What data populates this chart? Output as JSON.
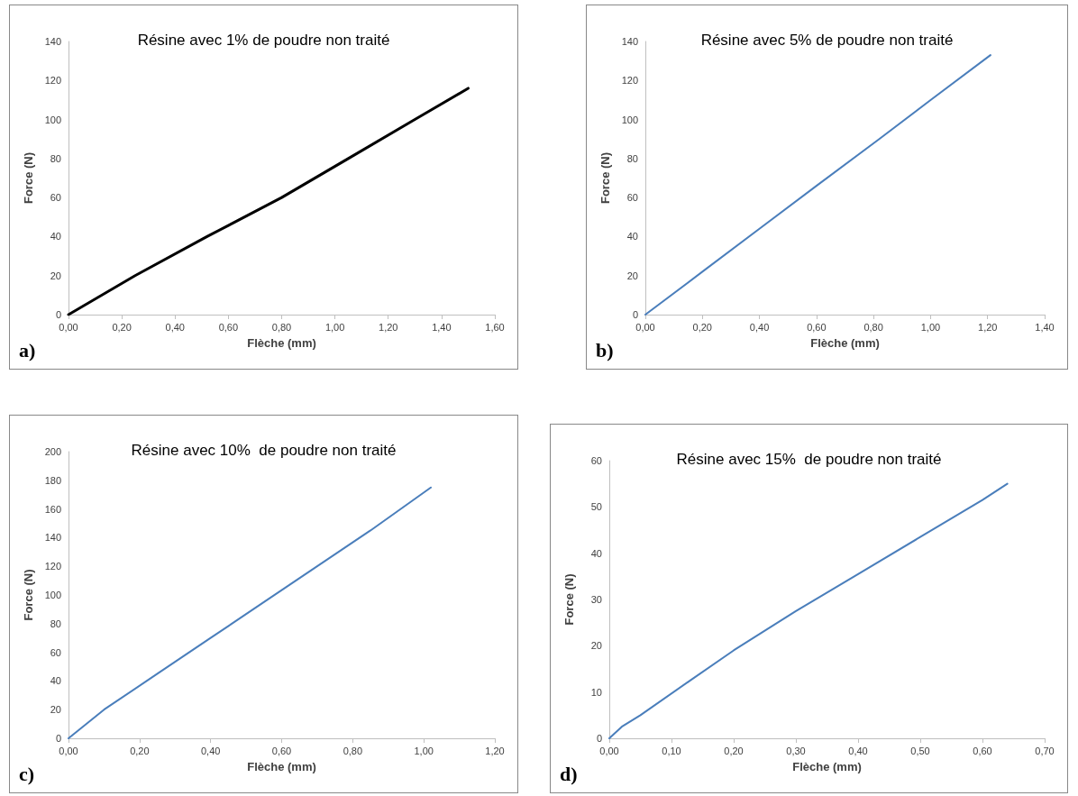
{
  "chart_data": [
    {
      "type": "line",
      "title": "Résine avec 1% de poudre non traité",
      "xlabel": "Flèche (mm)",
      "ylabel": "Force (N)",
      "annotations": [
        "a)"
      ],
      "marker": "none",
      "grid": false,
      "series": [
        {
          "color": "#000000",
          "x": [
            0,
            0.25,
            0.52,
            0.8,
            1.05,
            1.3,
            1.5
          ],
          "values": [
            0,
            20,
            40,
            60,
            80,
            100,
            116
          ]
        }
      ],
      "xlim": [
        0,
        1.6
      ],
      "xticks": [
        {
          "value": 0,
          "label": "0,00"
        },
        {
          "value": 0.2,
          "label": "0,20"
        },
        {
          "value": 0.4,
          "label": "0,40"
        },
        {
          "value": 0.6,
          "label": "0,60"
        },
        {
          "value": 0.8,
          "label": "0,80"
        },
        {
          "value": 1,
          "label": "1,00"
        },
        {
          "value": 1.2,
          "label": "1,20"
        },
        {
          "value": 1.4,
          "label": "1,40"
        },
        {
          "value": 1.6,
          "label": "1,60"
        }
      ],
      "ylim": [
        0,
        140
      ],
      "yticks": [
        0,
        20,
        40,
        60,
        80,
        100,
        120,
        140
      ]
    },
    {
      "type": "line",
      "title": "Résine avec 5% de poudre non traité",
      "xlabel": "Flèche (mm)",
      "ylabel": "Force (N)",
      "annotations": [
        "b)"
      ],
      "marker": "none",
      "grid": false,
      "series": [
        {
          "color": "#4a7ebb",
          "x": [
            0,
            0.2,
            0.4,
            0.6,
            0.82,
            1.0,
            1.21
          ],
          "values": [
            0,
            22,
            44,
            66,
            90,
            110,
            133
          ]
        }
      ],
      "xlim": [
        0,
        1.4
      ],
      "xticks": [
        {
          "value": 0,
          "label": "0,00"
        },
        {
          "value": 0.2,
          "label": "0,20"
        },
        {
          "value": 0.4,
          "label": "0,40"
        },
        {
          "value": 0.6,
          "label": "0,60"
        },
        {
          "value": 0.8,
          "label": "0,80"
        },
        {
          "value": 1,
          "label": "1,00"
        },
        {
          "value": 1.2,
          "label": "1,20"
        },
        {
          "value": 1.4,
          "label": "1,40"
        }
      ],
      "ylim": [
        0,
        140
      ],
      "yticks": [
        0,
        20,
        40,
        60,
        80,
        100,
        120,
        140
      ]
    },
    {
      "type": "line",
      "title": "Résine avec 10%  de poudre non traité",
      "xlabel": "Flèche (mm)",
      "ylabel": "Force (N)",
      "annotations": [
        "c)"
      ],
      "marker": "none",
      "grid": false,
      "series": [
        {
          "color": "#4a7ebb",
          "x": [
            0,
            0.1,
            0.25,
            0.4,
            0.55,
            0.7,
            0.85,
            1.02
          ],
          "values": [
            0,
            20,
            45,
            70,
            95,
            120,
            145,
            175
          ]
        }
      ],
      "xlim": [
        0,
        1.2
      ],
      "xticks": [
        {
          "value": 0,
          "label": "0,00"
        },
        {
          "value": 0.2,
          "label": "0,20"
        },
        {
          "value": 0.4,
          "label": "0,40"
        },
        {
          "value": 0.6,
          "label": "0,60"
        },
        {
          "value": 0.8,
          "label": "0,80"
        },
        {
          "value": 1,
          "label": "1,00"
        },
        {
          "value": 1.2,
          "label": "1,20"
        }
      ],
      "ylim": [
        0,
        200
      ],
      "yticks": [
        0,
        20,
        40,
        60,
        80,
        100,
        120,
        140,
        160,
        180,
        200
      ]
    },
    {
      "type": "line",
      "title": "Résine avec 15%  de poudre non traité",
      "xlabel": "Flèche (mm)",
      "ylabel": "Force (N)",
      "annotations": [
        "d)"
      ],
      "marker": "none",
      "grid": false,
      "series": [
        {
          "color": "#4a7ebb",
          "x": [
            0,
            0.02,
            0.05,
            0.13,
            0.2,
            0.3,
            0.4,
            0.5,
            0.6,
            0.64
          ],
          "values": [
            0,
            2.5,
            5,
            12.5,
            19,
            27.5,
            35.5,
            43.5,
            51.5,
            55
          ]
        }
      ],
      "xlim": [
        0,
        0.7
      ],
      "xticks": [
        {
          "value": 0,
          "label": "0,00"
        },
        {
          "value": 0.1,
          "label": "0,10"
        },
        {
          "value": 0.2,
          "label": "0,20"
        },
        {
          "value": 0.3,
          "label": "0,30"
        },
        {
          "value": 0.4,
          "label": "0,40"
        },
        {
          "value": 0.5,
          "label": "0,50"
        },
        {
          "value": 0.6,
          "label": "0,60"
        },
        {
          "value": 0.7,
          "label": "0,70"
        }
      ],
      "ylim": [
        0,
        60
      ],
      "yticks": [
        0,
        10,
        20,
        30,
        40,
        50,
        60
      ]
    }
  ]
}
